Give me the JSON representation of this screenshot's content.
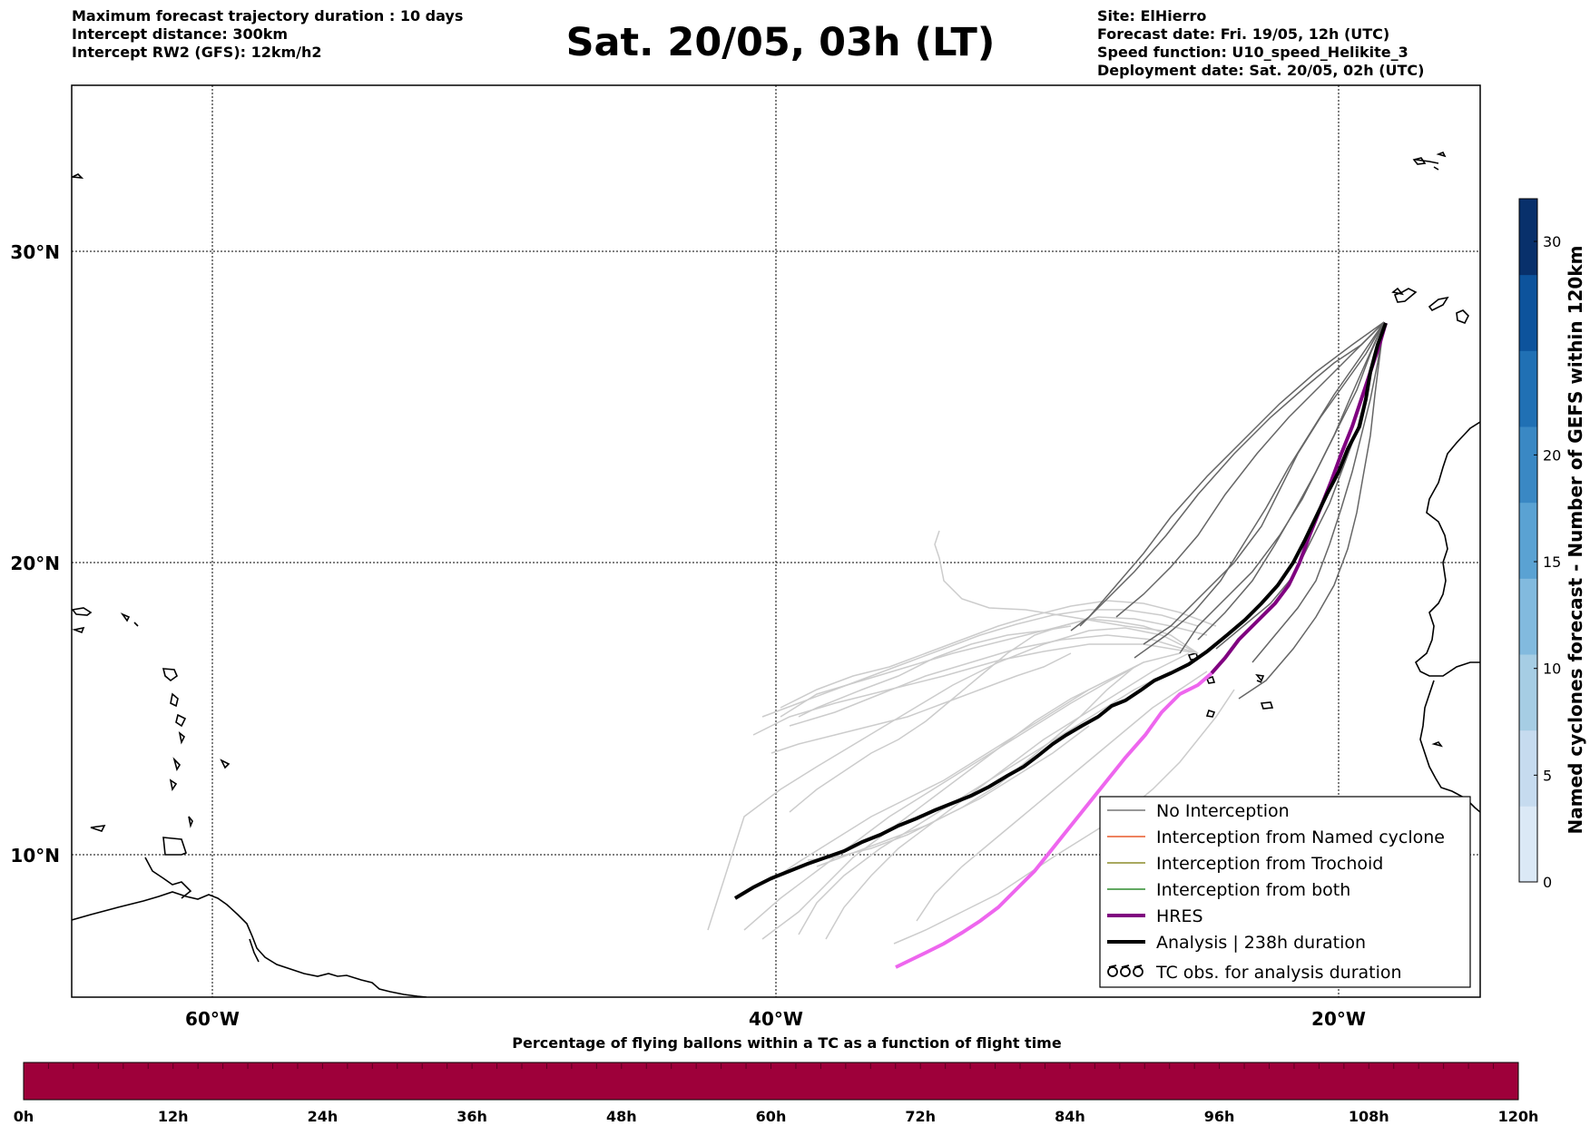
{
  "header": {
    "left_lines": [
      "Maximum forecast trajectory duration : 10 days",
      "Intercept distance: 300km",
      "Intercept RW2 (GFS):  12km/h2"
    ],
    "title": "Sat. 20/05, 03h (LT)",
    "right_lines": [
      "Site: ElHierro",
      "Forecast date: Fri. 19/05, 12h (UTC)",
      "Speed function: U10_speed_Helikite_3",
      "Deployment date: Sat. 20/05, 02h (UTC)"
    ]
  },
  "map": {
    "lon_range": [
      -65,
      15
    ],
    "lat_range": [
      5,
      35
    ],
    "lat_ticks": [
      "30°N",
      "20°N",
      "10°N"
    ],
    "lon_ticks": [
      "60°W",
      "40°W",
      "20°W"
    ],
    "grid": true
  },
  "legend": {
    "items": [
      {
        "label": "No Interception",
        "color": "#777777",
        "style": "thin"
      },
      {
        "label": "Interception from Named cyclone",
        "color": "#e8592a",
        "style": "thin"
      },
      {
        "label": "Interception from Trochoid",
        "color": "#8b8b2a",
        "style": "thin"
      },
      {
        "label": "Interception from both",
        "color": "#2e8b2e",
        "style": "thin"
      },
      {
        "label": "HRES",
        "color": "#8b0a8b",
        "style": "thick"
      },
      {
        "label": "Analysis | 238h duration",
        "color": "#000000",
        "style": "thick"
      },
      {
        "label": "TC obs. for analysis duration",
        "color": "#000000",
        "style": "symbol",
        "symbol": "ਰਰਰ"
      }
    ]
  },
  "colorbar_right": {
    "label": "Named cyclones forecast - Number of GEFS within 120km",
    "ticks": [
      "0",
      "5",
      "10",
      "15",
      "20",
      "30"
    ],
    "range": [
      0,
      32
    ],
    "colors": [
      "#dbe9f6",
      "#c6dbef",
      "#a6cde4",
      "#82bade",
      "#5aa2d3",
      "#3a88c4",
      "#2070b4",
      "#0d539c",
      "#08306b"
    ]
  },
  "colorbar_bottom": {
    "title": "Percentage of flying ballons within a TC as a function of flight time",
    "ticks": [
      "0h",
      "12h",
      "24h",
      "36h",
      "48h",
      "60h",
      "72h",
      "84h",
      "96h",
      "108h",
      "120h"
    ],
    "color": "#9e003a"
  },
  "tracks": {
    "analysis_color": "#000000",
    "hres_color": "#800080",
    "hres_tail_color": "#ee66ee",
    "ensemble_color": "#666666",
    "ensemble_light_color": "#cccccc"
  }
}
